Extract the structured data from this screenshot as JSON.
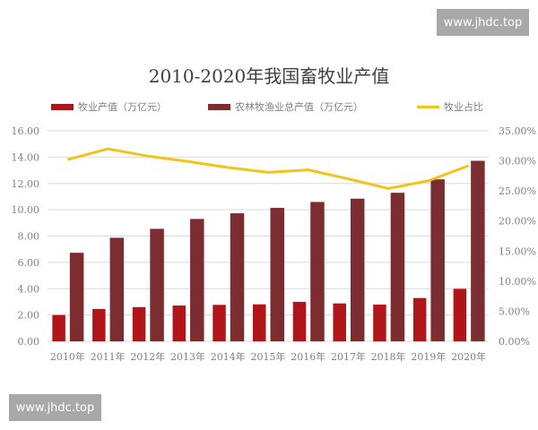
{
  "watermarks": {
    "top_right": "www.jhdc.top",
    "bottom_left": "www.jhdc.top"
  },
  "colors": {
    "livestock": "#b0151a",
    "total": "#7b2d2f",
    "share": "#f0c419",
    "grid": "#d9d9d9",
    "tick": "#808080"
  },
  "chart_data": {
    "type": "bar",
    "title": "2010-2020年我国畜牧业产值",
    "xlabel": "",
    "ylabel": "",
    "categories": [
      "2010年",
      "2011年",
      "2012年",
      "2013年",
      "2014年",
      "2015年",
      "2016年",
      "2017年",
      "2018年",
      "2019年",
      "2020年"
    ],
    "series": [
      {
        "name": "牧业产值（万亿元）",
        "type": "bar",
        "axis": "left",
        "values": [
          2.0,
          2.46,
          2.6,
          2.72,
          2.77,
          2.81,
          3.0,
          2.88,
          2.79,
          3.29,
          3.99
        ]
      },
      {
        "name": "农林牧渔业总产值（万亿元）",
        "type": "bar",
        "axis": "left",
        "values": [
          6.73,
          7.87,
          8.55,
          9.3,
          9.73,
          10.14,
          10.59,
          10.84,
          11.29,
          12.31,
          13.72
        ]
      },
      {
        "name": "牧业占比",
        "type": "line",
        "axis": "right",
        "values": [
          30.2,
          32.0,
          30.8,
          29.9,
          28.9,
          28.1,
          28.5,
          27.0,
          25.4,
          26.7,
          29.2
        ]
      }
    ],
    "ylim": [
      0,
      16
    ],
    "y2lim": [
      0,
      35
    ],
    "yticks": [
      "0.00",
      "2.00",
      "4.00",
      "6.00",
      "8.00",
      "10.00",
      "12.00",
      "14.00",
      "16.00"
    ],
    "y2ticks": [
      "0.00%",
      "5.00%",
      "10.00%",
      "15.00%",
      "20.00%",
      "25.00%",
      "30.00%",
      "35.00%"
    ],
    "grid": true,
    "legend_position": "top"
  }
}
